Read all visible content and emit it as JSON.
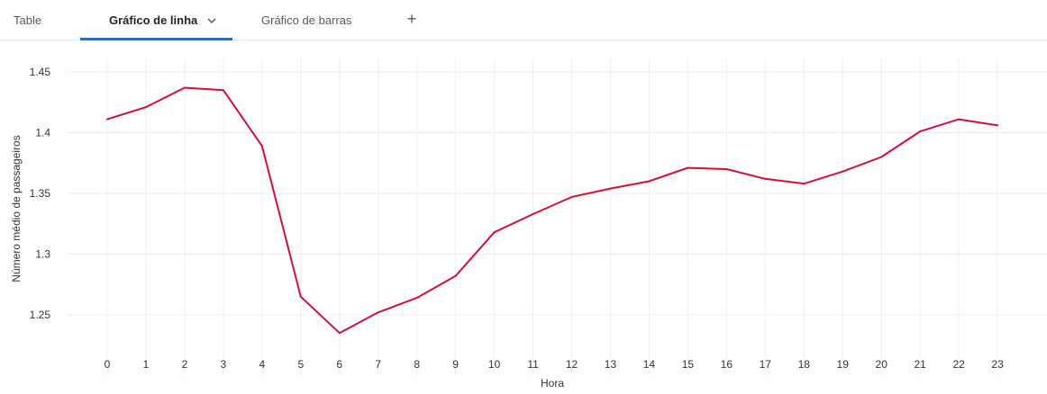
{
  "tabs": [
    {
      "label": "Table",
      "active": false
    },
    {
      "label": "Gráfico de linha",
      "active": true
    },
    {
      "label": "Gráfico de barras",
      "active": false
    }
  ],
  "add_tab_icon": "plus-icon",
  "chart_data": {
    "type": "line",
    "xlabel": "Hora",
    "ylabel": "Número médio de passageiros",
    "x": [
      0,
      1,
      2,
      3,
      4,
      5,
      6,
      7,
      8,
      9,
      10,
      11,
      12,
      13,
      14,
      15,
      16,
      17,
      18,
      19,
      20,
      21,
      22,
      23
    ],
    "series": [
      {
        "color": "#d0103a",
        "values": [
          1.411,
          1.421,
          1.437,
          1.435,
          1.389,
          1.265,
          1.235,
          1.252,
          1.264,
          1.282,
          1.318,
          1.333,
          1.347,
          1.354,
          1.36,
          1.371,
          1.37,
          1.362,
          1.358,
          1.368,
          1.38,
          1.401,
          1.411,
          1.406
        ]
      }
    ],
    "ylim": [
      1.2,
      1.45
    ],
    "yticks": [
      "1.25",
      "1.3",
      "1.35",
      "1.4",
      "1.45"
    ],
    "grid": true
  }
}
